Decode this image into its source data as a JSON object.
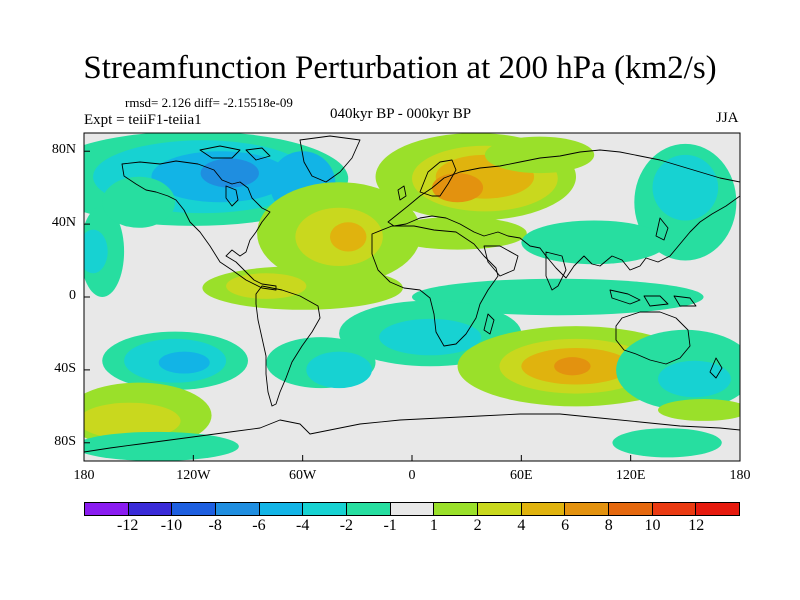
{
  "header": {
    "title": "Streamfunction Perturbation at 200 hPa (km2/s)",
    "stats": "rmsd= 2.126 diff= -2.15518e-09",
    "expt": "Expt = teiiF1-teiia1",
    "period": "040kyr BP - 000kyr BP",
    "season": "JJA"
  },
  "map": {
    "lat_ticks": [
      "80N",
      "40N",
      "0",
      "40S",
      "80S"
    ],
    "lat_values": [
      80,
      40,
      0,
      -40,
      -80
    ],
    "lon_ticks": [
      "180",
      "120W",
      "60W",
      "0",
      "60E",
      "120E",
      "180"
    ],
    "lon_values": [
      -180,
      -120,
      -60,
      0,
      60,
      120,
      180
    ],
    "lat_range": [
      -90,
      90
    ],
    "lon_range": [
      -180,
      180
    ]
  },
  "colorbar": {
    "colors": [
      "#8a1cf0",
      "#3a2bd8",
      "#1e5fe0",
      "#1f8ee0",
      "#12b4e6",
      "#17d2d2",
      "#27dea0",
      "#e8e8e8",
      "#9ae02a",
      "#c9d81e",
      "#e0b30e",
      "#e3920f",
      "#e5680e",
      "#ea3a12",
      "#e61a0e"
    ],
    "labels": [
      "-12",
      "-10",
      "-8",
      "-6",
      "-4",
      "-2",
      "-1",
      "1",
      "2",
      "4",
      "6",
      "8",
      "10",
      "12"
    ]
  },
  "field": {
    "background_color": "#e8e8e8",
    "blobs": [
      {
        "lon": -120,
        "lat": 65,
        "rx": 85,
        "ry": 26,
        "level": "#27dea0"
      },
      {
        "lon": -115,
        "lat": 66,
        "rx": 60,
        "ry": 20,
        "level": "#17d2d2"
      },
      {
        "lon": -105,
        "lat": 66,
        "rx": 38,
        "ry": 14,
        "level": "#12b4e6"
      },
      {
        "lon": -100,
        "lat": 68,
        "rx": 16,
        "ry": 8,
        "level": "#1f8ee0"
      },
      {
        "lon": -60,
        "lat": 62,
        "rx": 18,
        "ry": 18,
        "level": "#12b4e6"
      },
      {
        "lon": 35,
        "lat": 66,
        "rx": 55,
        "ry": 24,
        "level": "#9ae02a"
      },
      {
        "lon": 40,
        "lat": 65,
        "rx": 40,
        "ry": 18,
        "level": "#c9d81e"
      },
      {
        "lon": 40,
        "lat": 66,
        "rx": 27,
        "ry": 12,
        "level": "#e0b30e"
      },
      {
        "lon": 25,
        "lat": 60,
        "rx": 14,
        "ry": 8,
        "level": "#e3920f"
      },
      {
        "lon": 70,
        "lat": 78,
        "rx": 30,
        "ry": 10,
        "level": "#9ae02a"
      },
      {
        "lon": -40,
        "lat": 35,
        "rx": 45,
        "ry": 28,
        "level": "#9ae02a"
      },
      {
        "lon": -40,
        "lat": 33,
        "rx": 24,
        "ry": 16,
        "level": "#c9d81e"
      },
      {
        "lon": -35,
        "lat": 33,
        "rx": 10,
        "ry": 8,
        "level": "#e0b30e"
      },
      {
        "lon": -60,
        "lat": 5,
        "rx": 55,
        "ry": 12,
        "level": "#9ae02a"
      },
      {
        "lon": -80,
        "lat": 6,
        "rx": 22,
        "ry": 7,
        "level": "#c9d81e"
      },
      {
        "lon": 25,
        "lat": 35,
        "rx": 38,
        "ry": 9,
        "level": "#9ae02a"
      },
      {
        "lon": 150,
        "lat": 52,
        "rx": 28,
        "ry": 32,
        "level": "#27dea0"
      },
      {
        "lon": 150,
        "lat": 60,
        "rx": 18,
        "ry": 18,
        "level": "#17d2d2"
      },
      {
        "lon": 100,
        "lat": 30,
        "rx": 40,
        "ry": 12,
        "level": "#27dea0"
      },
      {
        "lon": -170,
        "lat": 25,
        "rx": 12,
        "ry": 25,
        "level": "#27dea0"
      },
      {
        "lon": -175,
        "lat": 25,
        "rx": 8,
        "ry": 12,
        "level": "#17d2d2"
      },
      {
        "lon": -150,
        "lat": 52,
        "rx": 20,
        "ry": 14,
        "level": "#27dea0"
      },
      {
        "lon": 80,
        "lat": 0,
        "rx": 80,
        "ry": 10,
        "level": "#27dea0"
      },
      {
        "lon": -130,
        "lat": -35,
        "rx": 40,
        "ry": 16,
        "level": "#27dea0"
      },
      {
        "lon": -130,
        "lat": -35,
        "rx": 28,
        "ry": 12,
        "level": "#17d2d2"
      },
      {
        "lon": -125,
        "lat": -36,
        "rx": 14,
        "ry": 6,
        "level": "#12b4e6"
      },
      {
        "lon": -50,
        "lat": -36,
        "rx": 30,
        "ry": 14,
        "level": "#27dea0"
      },
      {
        "lon": -40,
        "lat": -40,
        "rx": 18,
        "ry": 10,
        "level": "#17d2d2"
      },
      {
        "lon": 10,
        "lat": -20,
        "rx": 50,
        "ry": 18,
        "level": "#27dea0"
      },
      {
        "lon": 10,
        "lat": -22,
        "rx": 28,
        "ry": 10,
        "level": "#17d2d2"
      },
      {
        "lon": 90,
        "lat": -38,
        "rx": 65,
        "ry": 22,
        "level": "#9ae02a"
      },
      {
        "lon": 90,
        "lat": -38,
        "rx": 42,
        "ry": 15,
        "level": "#c9d81e"
      },
      {
        "lon": 90,
        "lat": -38,
        "rx": 30,
        "ry": 10,
        "level": "#e0b30e"
      },
      {
        "lon": 88,
        "lat": -38,
        "rx": 10,
        "ry": 5,
        "level": "#e3920f"
      },
      {
        "lon": 150,
        "lat": -40,
        "rx": 38,
        "ry": 22,
        "level": "#27dea0"
      },
      {
        "lon": 155,
        "lat": -45,
        "rx": 20,
        "ry": 10,
        "level": "#17d2d2"
      },
      {
        "lon": -150,
        "lat": -65,
        "rx": 40,
        "ry": 18,
        "level": "#9ae02a"
      },
      {
        "lon": -155,
        "lat": -68,
        "rx": 28,
        "ry": 10,
        "level": "#c9d81e"
      },
      {
        "lon": -140,
        "lat": -82,
        "rx": 45,
        "ry": 8,
        "level": "#27dea0"
      },
      {
        "lon": 140,
        "lat": -80,
        "rx": 30,
        "ry": 8,
        "level": "#27dea0"
      },
      {
        "lon": 160,
        "lat": -62,
        "rx": 25,
        "ry": 6,
        "level": "#9ae02a"
      }
    ]
  }
}
